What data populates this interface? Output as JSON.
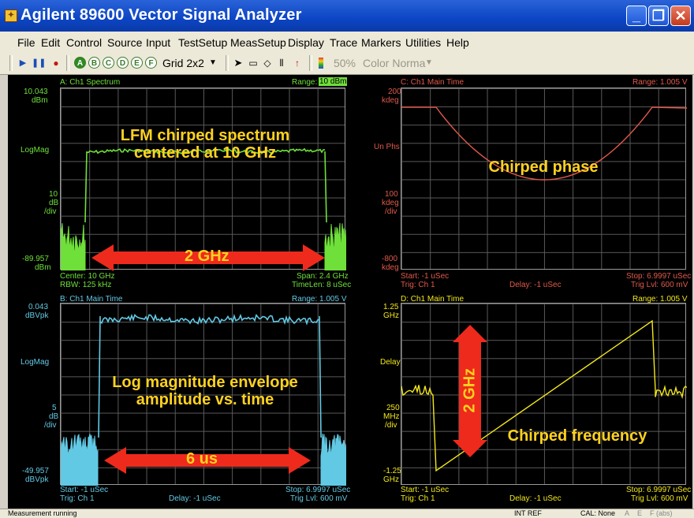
{
  "window": {
    "title": "Agilent 89600 Vector Signal Analyzer",
    "icon": "app-logo-icon",
    "controls": [
      "minimize",
      "maximize",
      "close"
    ]
  },
  "menu": [
    "File",
    "Edit",
    "Control",
    "Source",
    "Input",
    "TestSetup",
    "MeasSetup",
    "Display",
    "Trace",
    "Markers",
    "Utilities",
    "Help"
  ],
  "toolbar": {
    "play": "play-icon",
    "pause": "pause-icon",
    "record": "record-icon",
    "traces": [
      "A",
      "B",
      "C",
      "D",
      "E",
      "F"
    ],
    "active_trace": "A",
    "grid_label": "Grid 2x2",
    "pointer": "pointer-icon",
    "zoom_box": "box-icon",
    "marker": "marker-icon",
    "bars": "bars-icon",
    "peak": "peak-icon",
    "color_icon": "color-icon",
    "percent": "50%",
    "color_label": "Color Norma"
  },
  "panes": {
    "a": {
      "title": "A: Ch1 Spectrum",
      "range_label": "Range:",
      "range_value": "10 dBm",
      "top_value": "10.043",
      "top_unit": "dBm",
      "scale_type": "LogMag",
      "scale_div_value": "10",
      "scale_div_unit": "dB",
      "scale_div_per": "/div",
      "bottom_value": "-89.957",
      "bottom_unit": "dBm",
      "left_footer_1": "Center: 10 GHz",
      "left_footer_2": "RBW: 125 kHz",
      "right_footer_1": "Span: 2.4 GHz",
      "right_footer_2": "TimeLen: 8 uSec",
      "annotation_line1": "LFM chirped spectrum",
      "annotation_line2": "centered at 10 GHz",
      "arrow_label": "2 GHz"
    },
    "b": {
      "title": "B: Ch1 Main Time",
      "range_label": "Range: 1.005 V",
      "top_value": "0.043",
      "top_unit": "dBVpk",
      "scale_type": "LogMag",
      "scale_div_value": "5",
      "scale_div_unit": "dB",
      "scale_div_per": "/div",
      "bottom_value": "-49.957",
      "bottom_unit": "dBVpk",
      "left_footer_1": "Start: -1 uSec",
      "left_footer_2": "Trig: Ch 1",
      "mid_footer": "Delay: -1 uSec",
      "right_footer_1": "Stop: 6.9997 uSec",
      "right_footer_2": "Trig Lvl: 600 mV",
      "annotation_line1": "Log magnitude envelope",
      "annotation_line2": "amplitude vs. time",
      "arrow_label": "6 us"
    },
    "c": {
      "title": "C: Ch1 Main Time",
      "range_label": "Range: 1.005 V",
      "top_value": "200",
      "top_unit": "kdeg",
      "scale_type": "Un Phs",
      "scale_div_value": "100",
      "scale_div_unit": "kdeg",
      "scale_div_per": "/div",
      "bottom_value": "-800",
      "bottom_unit": "kdeg",
      "left_footer_1": "Start: -1 uSec",
      "left_footer_2": "Trig: Ch 1",
      "mid_footer": "Delay: -1 uSec",
      "right_footer_1": "Stop: 6.9997 uSec",
      "right_footer_2": "Trig Lvl: 600 mV",
      "annotation_line1": "Chirped phase"
    },
    "d": {
      "title": "D: Ch1 Main Time",
      "range_label": "Range: 1.005 V",
      "top_value": "1.25",
      "top_unit": "GHz",
      "scale_type": "Delay",
      "scale_div_value": "250",
      "scale_div_unit": "MHz",
      "scale_div_per": "/div",
      "bottom_value": "-1.25",
      "bottom_unit": "GHz",
      "left_footer_1": "Start: -1 uSec",
      "left_footer_2": "Trig: Ch 1",
      "mid_footer": "Delay: -1 uSec",
      "right_footer_1": "Stop: 6.9997 uSec",
      "right_footer_2": "Trig Lvl: 600 mV",
      "annotation_line1": "Chirped frequency",
      "arrow_label": "2 GHz"
    }
  },
  "status": {
    "left": "Measurement running",
    "ref": "INT REF",
    "cal": "CAL: None",
    "flags": [
      "A",
      "E",
      "F (abs)"
    ]
  },
  "colors": {
    "spectrum": "#6fe03a",
    "envelope": "#62c9e4",
    "phase": "#e05a4a",
    "frequency": "#f2e81a",
    "annotation": "#ffd21f",
    "arrow": "#ee2a1c"
  }
}
